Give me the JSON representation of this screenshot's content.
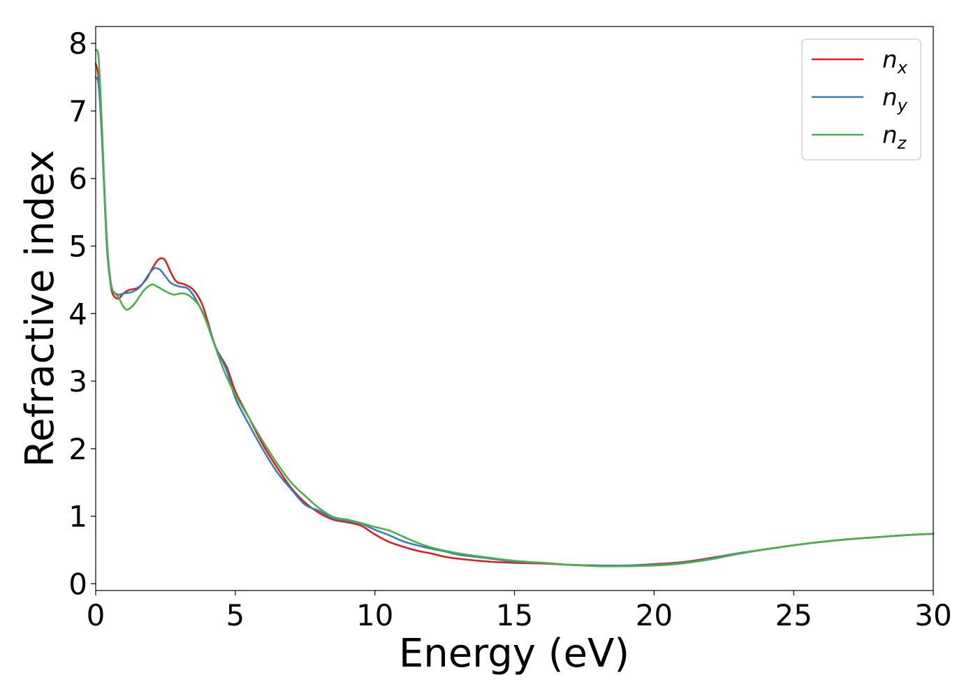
{
  "chart_data": {
    "type": "line",
    "xlabel": "Energy (eV)",
    "ylabel": "Refractive index",
    "xlim": [
      0,
      30
    ],
    "ylim": [
      -0.1,
      8.25
    ],
    "xticks": [
      0,
      5,
      10,
      15,
      20,
      25,
      30
    ],
    "xtick_labels": [
      "0",
      "5",
      "10",
      "15",
      "20",
      "25",
      "30"
    ],
    "yticks": [
      0,
      1,
      2,
      3,
      4,
      5,
      6,
      7,
      8
    ],
    "ytick_labels": [
      "0",
      "1",
      "2",
      "3",
      "4",
      "5",
      "6",
      "7",
      "8"
    ],
    "grid": false,
    "legend_position": "top-right",
    "series": [
      {
        "name": "n",
        "subscript": "x",
        "color": "#e41a1c",
        "points": [
          [
            0,
            7.7
          ],
          [
            0.1,
            7.5
          ],
          [
            0.2,
            6.8
          ],
          [
            0.3,
            5.9
          ],
          [
            0.4,
            5.0
          ],
          [
            0.5,
            4.55
          ],
          [
            0.6,
            4.3
          ],
          [
            0.8,
            4.22
          ],
          [
            1.0,
            4.3
          ],
          [
            1.2,
            4.35
          ],
          [
            1.5,
            4.38
          ],
          [
            1.8,
            4.5
          ],
          [
            2.0,
            4.65
          ],
          [
            2.2,
            4.78
          ],
          [
            2.35,
            4.82
          ],
          [
            2.5,
            4.78
          ],
          [
            2.7,
            4.6
          ],
          [
            2.9,
            4.47
          ],
          [
            3.2,
            4.43
          ],
          [
            3.5,
            4.35
          ],
          [
            3.8,
            4.15
          ],
          [
            4.0,
            3.9
          ],
          [
            4.3,
            3.5
          ],
          [
            4.7,
            3.2
          ],
          [
            5.0,
            2.85
          ],
          [
            5.5,
            2.45
          ],
          [
            6.0,
            2.05
          ],
          [
            6.5,
            1.72
          ],
          [
            7.0,
            1.42
          ],
          [
            7.5,
            1.2
          ],
          [
            8.0,
            1.05
          ],
          [
            8.5,
            0.95
          ],
          [
            9.0,
            0.91
          ],
          [
            9.5,
            0.86
          ],
          [
            10.0,
            0.73
          ],
          [
            10.5,
            0.62
          ],
          [
            11.0,
            0.55
          ],
          [
            11.5,
            0.49
          ],
          [
            12.0,
            0.45
          ],
          [
            12.5,
            0.4
          ],
          [
            13.0,
            0.37
          ],
          [
            14.0,
            0.33
          ],
          [
            15.0,
            0.31
          ],
          [
            16.0,
            0.3
          ],
          [
            17.0,
            0.28
          ],
          [
            18.0,
            0.27
          ],
          [
            19.0,
            0.27
          ],
          [
            20.0,
            0.29
          ],
          [
            21.0,
            0.32
          ],
          [
            22.0,
            0.38
          ],
          [
            23.0,
            0.45
          ],
          [
            24.0,
            0.51
          ],
          [
            25.0,
            0.57
          ],
          [
            26.0,
            0.62
          ],
          [
            27.0,
            0.66
          ],
          [
            28.0,
            0.69
          ],
          [
            29.0,
            0.72
          ],
          [
            30.0,
            0.74
          ]
        ]
      },
      {
        "name": "n",
        "subscript": "y",
        "color": "#377eb8",
        "points": [
          [
            0,
            7.5
          ],
          [
            0.1,
            7.4
          ],
          [
            0.2,
            6.8
          ],
          [
            0.3,
            5.9
          ],
          [
            0.4,
            5.0
          ],
          [
            0.5,
            4.55
          ],
          [
            0.6,
            4.35
          ],
          [
            0.8,
            4.28
          ],
          [
            1.0,
            4.3
          ],
          [
            1.3,
            4.32
          ],
          [
            1.6,
            4.4
          ],
          [
            1.9,
            4.58
          ],
          [
            2.1,
            4.67
          ],
          [
            2.3,
            4.65
          ],
          [
            2.5,
            4.55
          ],
          [
            2.7,
            4.45
          ],
          [
            3.0,
            4.4
          ],
          [
            3.3,
            4.37
          ],
          [
            3.6,
            4.2
          ],
          [
            4.0,
            3.85
          ],
          [
            4.3,
            3.5
          ],
          [
            4.7,
            3.15
          ],
          [
            5.0,
            2.75
          ],
          [
            5.5,
            2.35
          ],
          [
            6.0,
            1.98
          ],
          [
            6.5,
            1.65
          ],
          [
            7.0,
            1.4
          ],
          [
            7.5,
            1.17
          ],
          [
            8.0,
            1.08
          ],
          [
            8.5,
            0.97
          ],
          [
            9.0,
            0.93
          ],
          [
            9.5,
            0.89
          ],
          [
            10.0,
            0.8
          ],
          [
            10.5,
            0.72
          ],
          [
            11.0,
            0.63
          ],
          [
            11.5,
            0.57
          ],
          [
            12.0,
            0.52
          ],
          [
            12.5,
            0.48
          ],
          [
            13.0,
            0.43
          ],
          [
            14.0,
            0.38
          ],
          [
            15.0,
            0.33
          ],
          [
            16.0,
            0.31
          ],
          [
            17.0,
            0.28
          ],
          [
            18.0,
            0.27
          ],
          [
            19.0,
            0.27
          ],
          [
            20.0,
            0.28
          ],
          [
            21.0,
            0.31
          ],
          [
            22.0,
            0.37
          ],
          [
            23.0,
            0.45
          ],
          [
            24.0,
            0.51
          ],
          [
            25.0,
            0.57
          ],
          [
            26.0,
            0.62
          ],
          [
            27.0,
            0.66
          ],
          [
            28.0,
            0.69
          ],
          [
            29.0,
            0.72
          ],
          [
            30.0,
            0.74
          ]
        ]
      },
      {
        "name": "n",
        "subscript": "z",
        "color": "#4daf4a",
        "points": [
          [
            0,
            7.9
          ],
          [
            0.1,
            7.8
          ],
          [
            0.2,
            7.0
          ],
          [
            0.3,
            6.0
          ],
          [
            0.4,
            5.1
          ],
          [
            0.5,
            4.6
          ],
          [
            0.6,
            4.35
          ],
          [
            0.8,
            4.25
          ],
          [
            1.0,
            4.1
          ],
          [
            1.15,
            4.06
          ],
          [
            1.4,
            4.15
          ],
          [
            1.7,
            4.33
          ],
          [
            2.0,
            4.43
          ],
          [
            2.2,
            4.4
          ],
          [
            2.5,
            4.33
          ],
          [
            2.8,
            4.28
          ],
          [
            3.1,
            4.3
          ],
          [
            3.4,
            4.25
          ],
          [
            3.8,
            4.05
          ],
          [
            4.2,
            3.6
          ],
          [
            4.6,
            3.15
          ],
          [
            5.0,
            2.8
          ],
          [
            5.5,
            2.45
          ],
          [
            6.0,
            2.1
          ],
          [
            6.5,
            1.78
          ],
          [
            7.0,
            1.5
          ],
          [
            7.5,
            1.3
          ],
          [
            8.0,
            1.12
          ],
          [
            8.5,
            0.99
          ],
          [
            9.0,
            0.95
          ],
          [
            9.5,
            0.9
          ],
          [
            10.0,
            0.84
          ],
          [
            10.5,
            0.79
          ],
          [
            11.0,
            0.7
          ],
          [
            11.5,
            0.61
          ],
          [
            12.0,
            0.54
          ],
          [
            12.5,
            0.49
          ],
          [
            13.0,
            0.45
          ],
          [
            14.0,
            0.39
          ],
          [
            15.0,
            0.34
          ],
          [
            16.0,
            0.31
          ],
          [
            17.0,
            0.28
          ],
          [
            18.0,
            0.26
          ],
          [
            19.0,
            0.26
          ],
          [
            20.0,
            0.27
          ],
          [
            21.0,
            0.3
          ],
          [
            22.0,
            0.36
          ],
          [
            23.0,
            0.44
          ],
          [
            24.0,
            0.51
          ],
          [
            25.0,
            0.57
          ],
          [
            26.0,
            0.62
          ],
          [
            27.0,
            0.66
          ],
          [
            28.0,
            0.69
          ],
          [
            29.0,
            0.72
          ],
          [
            30.0,
            0.74
          ]
        ]
      }
    ]
  }
}
